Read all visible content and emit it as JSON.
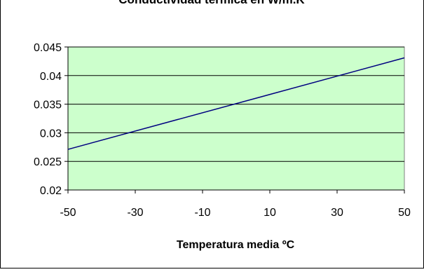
{
  "chart_data": {
    "type": "line",
    "title": "Conductividad térmica en W/m.K",
    "xlabel": "Temperatura media ºC",
    "ylabel": "",
    "xlim": [
      -50,
      50
    ],
    "ylim": [
      0.02,
      0.045
    ],
    "x_ticks": [
      "-50",
      "-30",
      "-10",
      "10",
      "30",
      "50"
    ],
    "y_ticks": [
      "0.02",
      "0.025",
      "0.03",
      "0.035",
      "0.04",
      "0.045"
    ],
    "x_tick_values": [
      -50,
      -30,
      -10,
      10,
      30,
      50
    ],
    "y_tick_values": [
      0.02,
      0.025,
      0.03,
      0.035,
      0.04,
      0.045
    ],
    "grid": "horizontal",
    "legend": "none",
    "series": [
      {
        "x": [
          -50,
          50
        ],
        "y": [
          0.0271,
          0.0431
        ],
        "color": "#000080"
      }
    ],
    "plot_background": "#ccffcc"
  }
}
